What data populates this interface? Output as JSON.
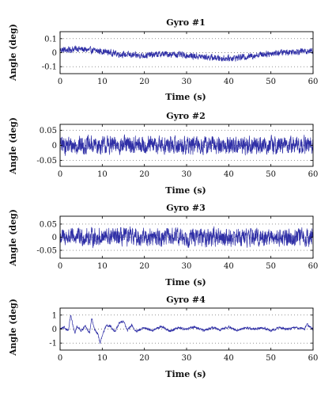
{
  "colors": {
    "trace": "#2f2fa6"
  },
  "chart_data": [
    {
      "type": "line",
      "title": "Gyro #1",
      "xlabel": "Time (s)",
      "ylabel": "Angle (deg)",
      "xlim": [
        0,
        60
      ],
      "ylim": [
        -0.15,
        0.15
      ],
      "xticks": [
        0,
        10,
        20,
        30,
        40,
        50,
        60
      ],
      "yticks": [
        -0.1,
        0,
        0.1
      ],
      "ytick_labels": [
        "-0.1",
        "0",
        "0.1"
      ],
      "grid": "dotted horizontal",
      "series": [
        {
          "x": [
            0,
            2,
            4,
            6,
            8,
            10,
            12,
            14,
            16,
            18,
            20,
            22,
            24,
            26,
            28,
            30,
            32,
            34,
            36,
            38,
            40,
            42,
            44,
            46,
            48,
            50,
            52,
            54,
            56,
            58,
            60
          ],
          "values": [
            0.02,
            0.02,
            0.03,
            0.02,
            0.015,
            0.01,
            0.0,
            -0.01,
            -0.015,
            -0.02,
            -0.02,
            -0.015,
            -0.01,
            -0.01,
            -0.015,
            -0.02,
            -0.025,
            -0.03,
            -0.035,
            -0.04,
            -0.04,
            -0.035,
            -0.03,
            -0.02,
            -0.01,
            -0.005,
            0.0,
            0.005,
            0.01,
            0.01,
            0.015
          ],
          "noise_band": 0.03
        }
      ]
    },
    {
      "type": "line",
      "title": "Gyro #2",
      "xlabel": "Time (s)",
      "ylabel": "Angle (deg)",
      "xlim": [
        0,
        60
      ],
      "ylim": [
        -0.07,
        0.07
      ],
      "xticks": [
        0,
        10,
        20,
        30,
        40,
        50,
        60
      ],
      "yticks": [
        -0.05,
        0,
        0.05
      ],
      "ytick_labels": [
        "-0.05",
        "0",
        "0.05"
      ],
      "grid": "dotted horizontal",
      "series": [
        {
          "x": [
            0,
            10,
            20,
            30,
            40,
            50,
            60
          ],
          "values": [
            0,
            0,
            0,
            0,
            0,
            0,
            0
          ],
          "noise_band": 0.04
        }
      ]
    },
    {
      "type": "line",
      "title": "Gyro #3",
      "xlabel": "Time (s)",
      "ylabel": "Angle (deg)",
      "xlim": [
        0,
        60
      ],
      "ylim": [
        -0.08,
        0.08
      ],
      "xticks": [
        0,
        10,
        20,
        30,
        40,
        50,
        60
      ],
      "yticks": [
        -0.05,
        0,
        0.05
      ],
      "ytick_labels": [
        "-0.05",
        "0",
        "0.05"
      ],
      "grid": "dotted horizontal",
      "series": [
        {
          "x": [
            0,
            10,
            20,
            30,
            40,
            50,
            60
          ],
          "values": [
            0,
            0,
            0,
            0,
            0,
            0,
            0
          ],
          "noise_band": 0.045
        }
      ]
    },
    {
      "type": "line",
      "title": "Gyro #4",
      "xlabel": "Time (s)",
      "ylabel": "Angle (deg)",
      "xlim": [
        0,
        60
      ],
      "ylim": [
        -1.5,
        1.5
      ],
      "xticks": [
        0,
        10,
        20,
        30,
        40,
        50,
        60
      ],
      "yticks": [
        -1,
        0,
        1
      ],
      "ytick_labels": [
        "-1",
        "0",
        "1"
      ],
      "grid": "dotted horizontal",
      "series": [
        {
          "x": [
            0,
            1,
            2,
            2.5,
            3,
            3.5,
            4,
            5,
            6,
            7,
            7.5,
            8,
            9,
            9.5,
            10,
            11,
            12,
            13,
            14,
            15,
            16,
            17,
            18,
            20,
            22,
            24,
            26,
            28,
            30,
            32,
            34,
            36,
            38,
            40,
            42,
            44,
            46,
            48,
            50,
            52,
            54,
            56,
            58,
            58.5,
            59,
            60
          ],
          "values": [
            0.0,
            0.1,
            -0.1,
            1.0,
            0.3,
            -0.3,
            0.2,
            -0.1,
            0.2,
            -0.3,
            0.8,
            0.1,
            -0.4,
            -1.0,
            -0.5,
            0.3,
            0.2,
            -0.2,
            0.4,
            0.6,
            -0.1,
            0.3,
            -0.2,
            0.1,
            -0.1,
            0.2,
            -0.15,
            0.1,
            0.0,
            0.15,
            -0.1,
            0.1,
            -0.05,
            0.15,
            -0.1,
            0.1,
            0.0,
            0.1,
            -0.1,
            0.1,
            0.0,
            0.1,
            0.0,
            0.4,
            0.2,
            -0.05
          ],
          "noise_band": 0.12
        }
      ]
    }
  ]
}
